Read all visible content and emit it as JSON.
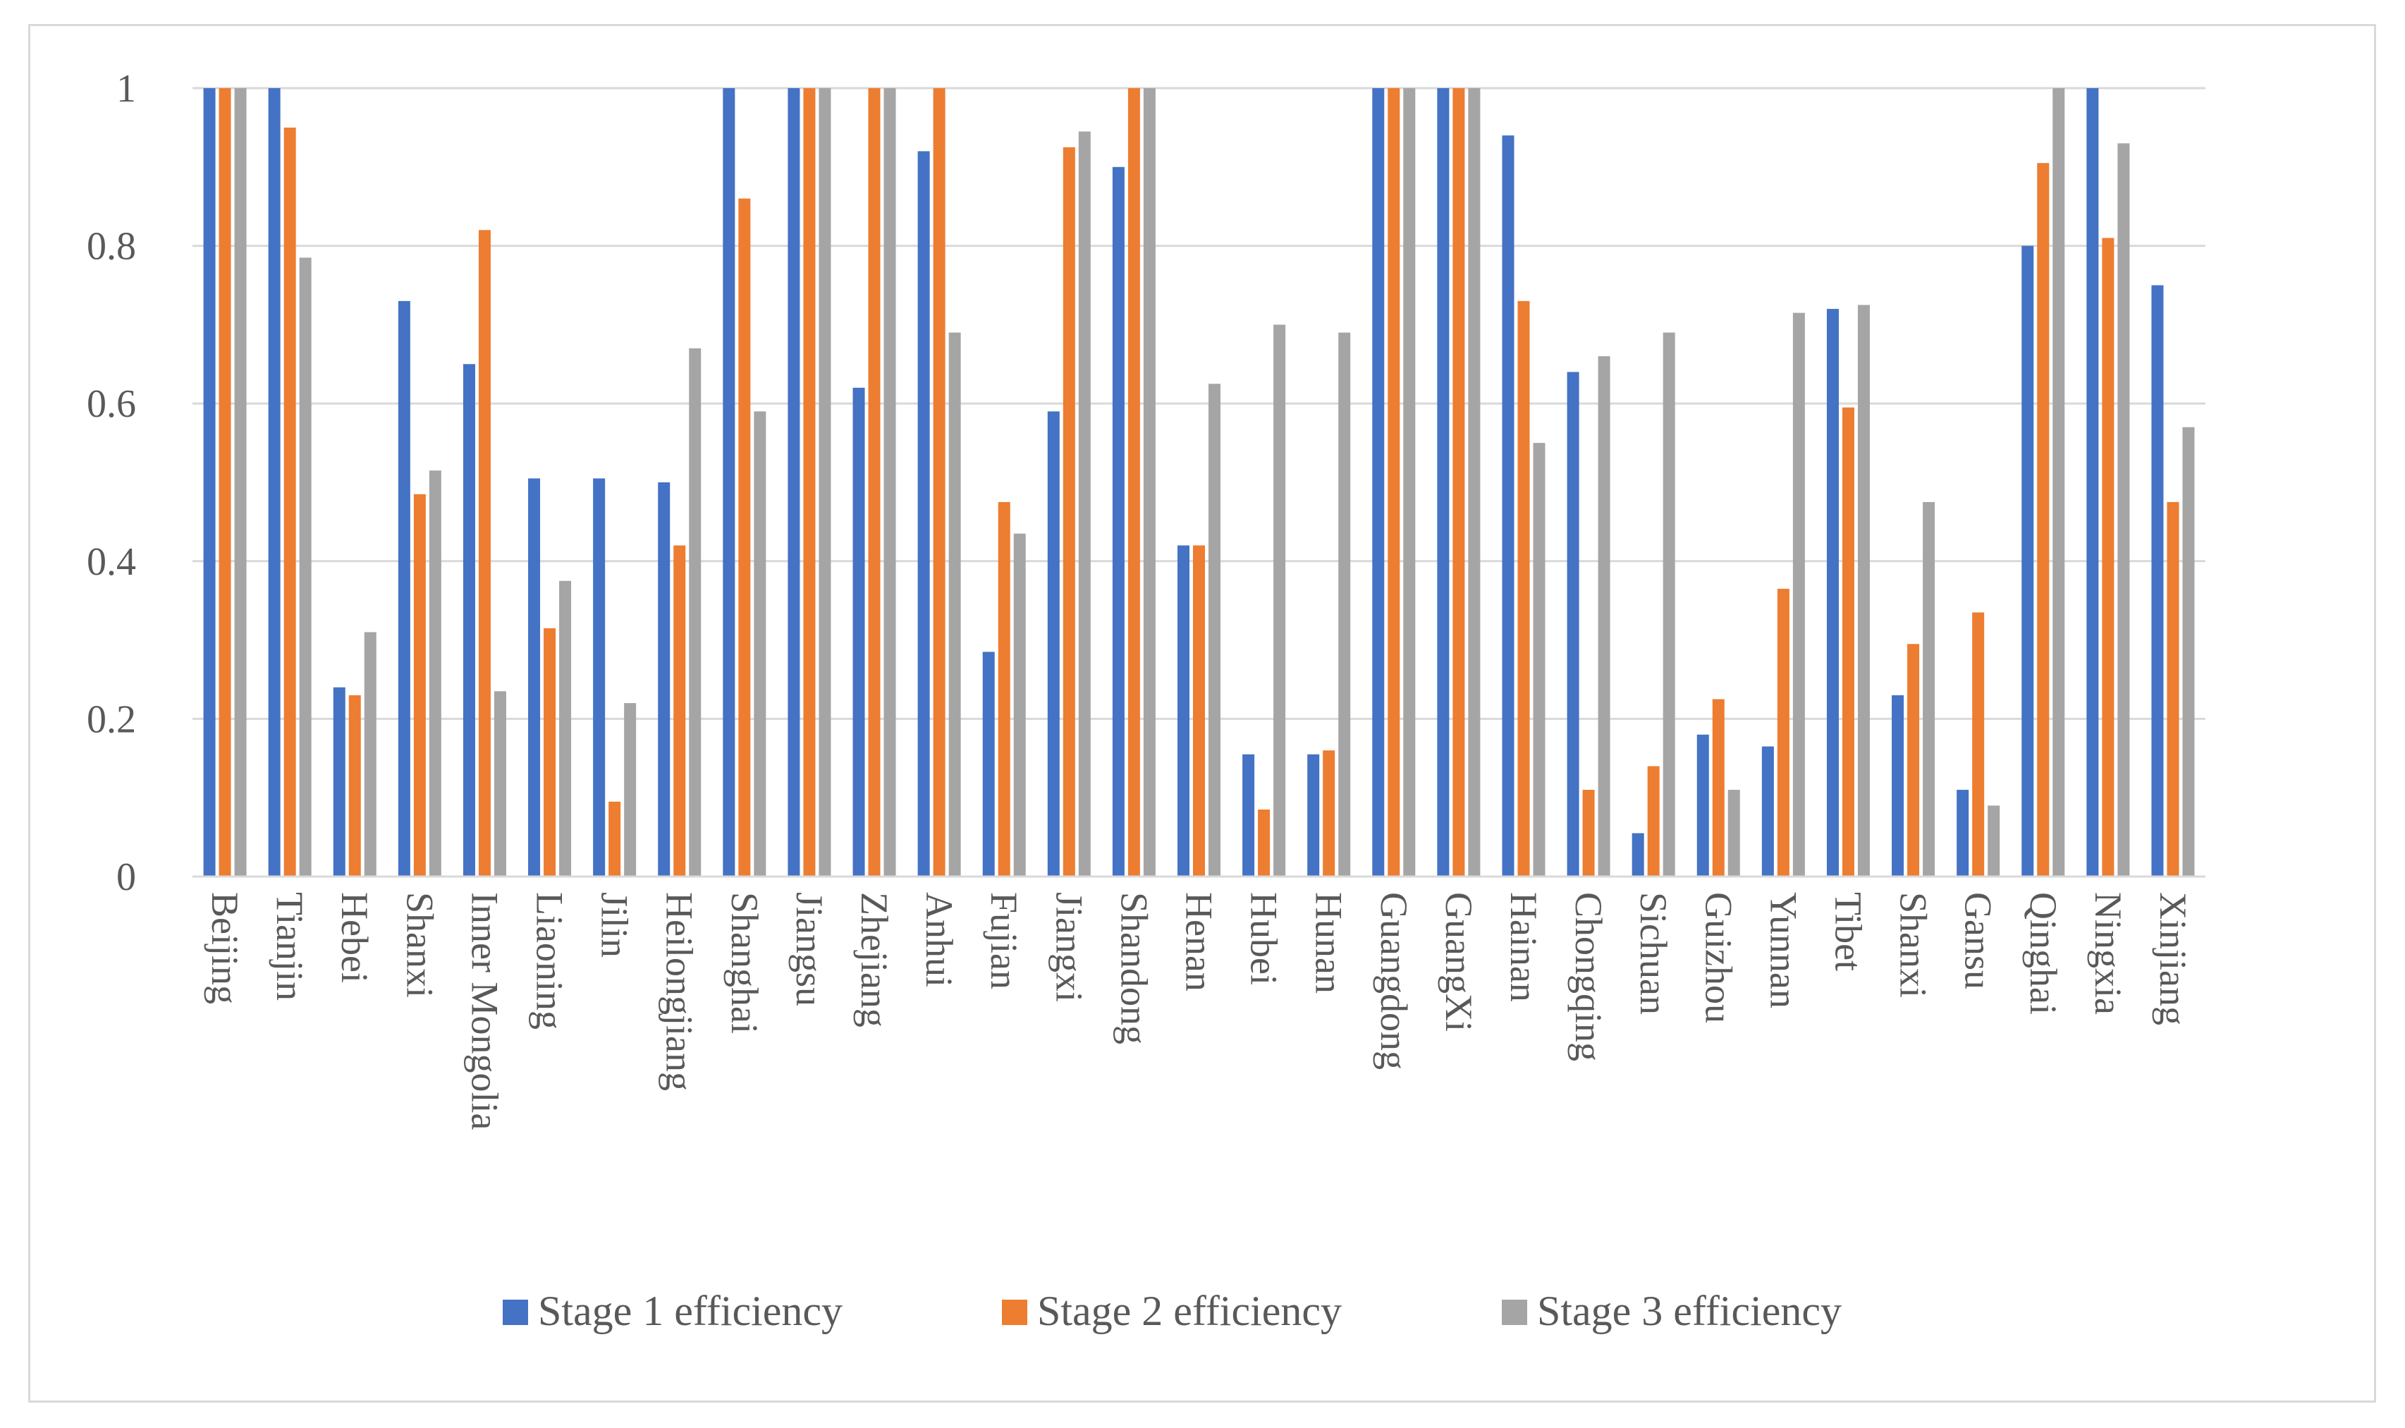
{
  "chart_data": {
    "type": "bar",
    "title": "",
    "xlabel": "",
    "ylabel": "",
    "ylim": [
      0,
      1
    ],
    "yticks": [
      "0",
      "0.2",
      "0.4",
      "0.6",
      "0.8",
      "1"
    ],
    "ytick_values": [
      0,
      0.2,
      0.4,
      0.6,
      0.8,
      1
    ],
    "grid": true,
    "legend_position": "bottom",
    "categories": [
      "Beijing",
      "Tianjin",
      "Hebei",
      "Shanxi",
      "Inner Mongolia",
      "Liaoning",
      "Jilin",
      "Heilongjiang",
      "Shanghai",
      "Jiangsu",
      "Zhejiang",
      "Anhui",
      "Fujian",
      "Jiangxi",
      "Shandong",
      "Henan",
      "Hubei",
      "Hunan",
      "Guangdong",
      "GuangXi",
      "Hainan",
      "Chongqing",
      "Sichuan",
      "Guizhou",
      "Yunnan",
      "Tibet",
      "Shanxi",
      "Gansu",
      "Qinghai",
      "Ningxia",
      "Xinjiang"
    ],
    "series": [
      {
        "name": "Stage 1 efficiency",
        "color": "#4472c4",
        "values": [
          1,
          1,
          0.24,
          0.73,
          0.65,
          0.505,
          0.505,
          0.5,
          1,
          1,
          0.62,
          0.92,
          0.285,
          0.59,
          0.9,
          0.42,
          0.155,
          0.155,
          1,
          1,
          0.94,
          0.64,
          0.055,
          0.18,
          0.165,
          0.72,
          0.23,
          0.11,
          0.8,
          1,
          0.75
        ]
      },
      {
        "name": "Stage 2 efficiency",
        "color": "#ed7d31",
        "values": [
          1,
          0.95,
          0.23,
          0.485,
          0.82,
          0.315,
          0.095,
          0.42,
          0.86,
          1,
          1,
          1,
          0.475,
          0.925,
          1,
          0.42,
          0.085,
          0.16,
          1,
          1,
          0.73,
          0.11,
          0.14,
          0.225,
          0.365,
          0.595,
          0.295,
          0.335,
          0.905,
          0.81,
          0.475
        ]
      },
      {
        "name": "Stage 3 efficiency",
        "color": "#a5a5a5",
        "values": [
          1,
          0.785,
          0.31,
          0.515,
          0.235,
          0.375,
          0.22,
          0.67,
          0.59,
          1,
          1,
          0.69,
          0.435,
          0.945,
          1,
          0.625,
          0.7,
          0.69,
          1,
          1,
          0.55,
          0.66,
          0.69,
          0.11,
          0.715,
          0.725,
          0.475,
          0.09,
          1,
          0.93,
          0.57
        ]
      }
    ]
  }
}
